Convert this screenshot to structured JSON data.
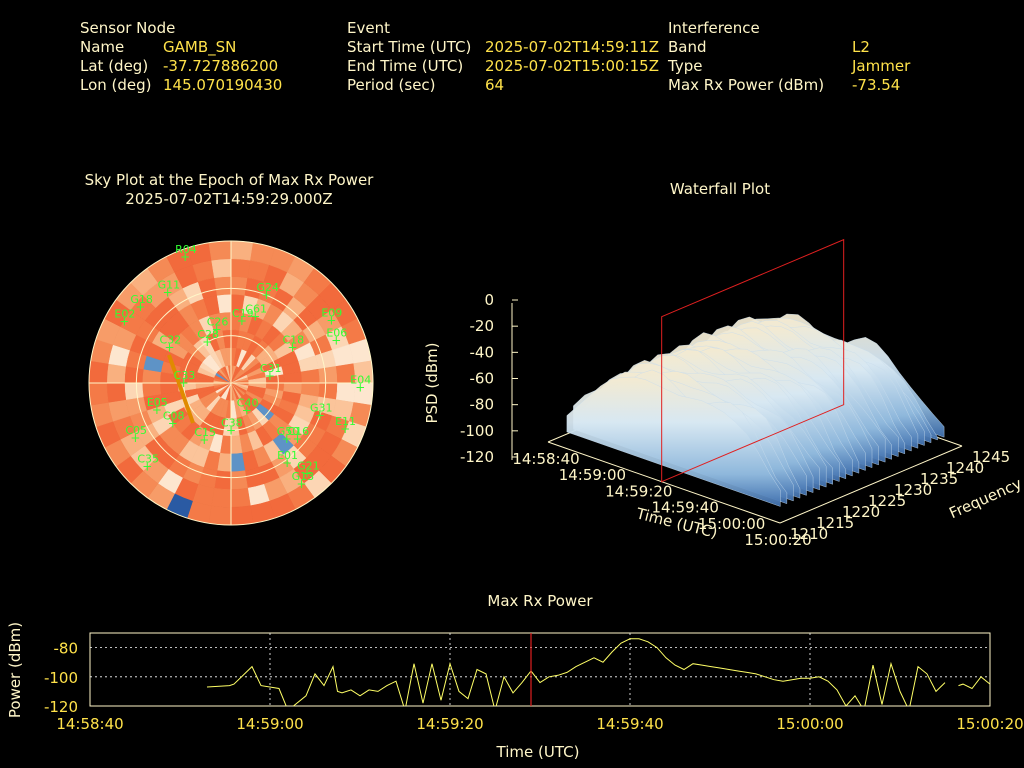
{
  "header": {
    "sensor": {
      "heading": "Sensor Node",
      "rows": [
        {
          "label": "Name",
          "value": "GAMB_SN"
        },
        {
          "label": "Lat (deg)",
          "value": "-37.727886200"
        },
        {
          "label": "Lon (deg)",
          "value": "145.070190430"
        }
      ]
    },
    "event": {
      "heading": "Event",
      "rows": [
        {
          "label": "Start Time (UTC)",
          "value": "2025-07-02T14:59:11Z"
        },
        {
          "label": "End Time (UTC)",
          "value": "2025-07-02T15:00:15Z"
        },
        {
          "label": "Period (sec)",
          "value": "64"
        }
      ]
    },
    "interference": {
      "heading": "Interference",
      "rows": [
        {
          "label": "Band",
          "value": "L2"
        },
        {
          "label": "Type",
          "value": "Jammer"
        },
        {
          "label": "Max Rx Power (dBm)",
          "value": "-73.54"
        }
      ]
    }
  },
  "colors": {
    "label": "#fff6c8",
    "value": "#ffe24a",
    "sat_label": "#33ff33",
    "marker": "#e02020",
    "line": "#ffff66"
  },
  "chart_data": [
    {
      "type": "heatmap",
      "projection": "polar",
      "title": "Sky Plot at the Epoch of Max Rx Power",
      "subtitle": "2025-07-02T14:59:29.000Z",
      "satellites": [
        {
          "id": "R04",
          "az": 340,
          "el": 5
        },
        {
          "id": "G24",
          "az": 22,
          "el": 30
        },
        {
          "id": "E09",
          "az": 58,
          "el": 15
        },
        {
          "id": "E06",
          "az": 68,
          "el": 18
        },
        {
          "id": "E04",
          "az": 92,
          "el": 8
        },
        {
          "id": "E11",
          "az": 112,
          "el": 12
        },
        {
          "id": "G31",
          "az": 110,
          "el": 30
        },
        {
          "id": "G50",
          "az": 135,
          "el": 40
        },
        {
          "id": "G21",
          "az": 140,
          "el": 15
        },
        {
          "id": "G13",
          "az": 145,
          "el": 12
        },
        {
          "id": "E01",
          "az": 145,
          "el": 28
        },
        {
          "id": "C16",
          "az": 130,
          "el": 35
        },
        {
          "id": "C18",
          "az": 60,
          "el": 45
        },
        {
          "id": "C61",
          "az": 20,
          "el": 45
        },
        {
          "id": "C19",
          "az": 10,
          "el": 50
        },
        {
          "id": "C26",
          "az": 345,
          "el": 55
        },
        {
          "id": "C28",
          "az": 330,
          "el": 60
        },
        {
          "id": "G11",
          "az": 325,
          "el": 20
        },
        {
          "id": "G18",
          "az": 310,
          "el": 15
        },
        {
          "id": "E02",
          "az": 300,
          "el": 12
        },
        {
          "id": "C05",
          "az": 240,
          "el": 20
        },
        {
          "id": "C35",
          "az": 225,
          "el": 15
        },
        {
          "id": "C08",
          "az": 235,
          "el": 45
        },
        {
          "id": "E05",
          "az": 250,
          "el": 40
        },
        {
          "id": "C15",
          "az": 205,
          "el": 50
        },
        {
          "id": "C38",
          "az": 180,
          "el": 60
        },
        {
          "id": "C40",
          "az": 150,
          "el": 70
        },
        {
          "id": "C31",
          "az": 80,
          "el": 65
        },
        {
          "id": "C33",
          "az": 270,
          "el": 60
        },
        {
          "id": "C32",
          "az": 300,
          "el": 45
        }
      ]
    },
    {
      "type": "area",
      "projection": "3d-waterfall",
      "title": "Waterfall Plot",
      "xlabel": "Time (UTC)",
      "ylabel": "Frequency (MHz)",
      "zlabel": "PSD (dBm)",
      "x_ticks": [
        "14:58:40",
        "14:59:00",
        "14:59:20",
        "14:59:40",
        "15:00:00",
        "15:00:20"
      ],
      "y_ticks": [
        "1210",
        "1215",
        "1220",
        "1225",
        "1230",
        "1235",
        "1240",
        "1245"
      ],
      "z_ticks": [
        "0",
        "-20",
        "-40",
        "-60",
        "-80",
        "-100",
        "-120"
      ],
      "zlim": [
        -120,
        0
      ],
      "psd_mean_profile": [
        -100,
        -90,
        -80,
        -70,
        -62,
        -58,
        -55,
        -54,
        -55,
        -56,
        -57,
        -56,
        -55,
        -56,
        -58,
        -62,
        -68,
        -78,
        -90,
        -100
      ],
      "marker_time": "14:59:29"
    },
    {
      "type": "line",
      "title": "Max Rx Power",
      "xlabel": "Time (UTC)",
      "ylabel": "Power (dBm)",
      "x_ticks": [
        "14:58:40",
        "14:59:00",
        "14:59:20",
        "14:59:40",
        "15:00:00",
        "15:00:20"
      ],
      "y_ticks": [
        -80,
        -100,
        -120
      ],
      "ylim": [
        -120,
        -70
      ],
      "xlim_seconds": [
        0,
        100
      ],
      "grid": true,
      "marker_time": "14:59:29",
      "series": [
        {
          "points": [
            [
              13,
              -107
            ],
            [
              15.5,
              -106
            ],
            [
              16,
              -105
            ],
            [
              18,
              -93
            ],
            [
              19,
              -106
            ],
            [
              21,
              -108
            ],
            [
              22,
              -123
            ],
            [
              24,
              -113
            ],
            [
              25,
              -98
            ],
            [
              26,
              -106
            ],
            [
              27,
              -93
            ],
            [
              27.5,
              -110
            ],
            [
              28,
              -111
            ],
            [
              29,
              -109
            ],
            [
              30,
              -113
            ],
            [
              31,
              -109
            ],
            [
              32,
              -110
            ],
            [
              33,
              -106
            ],
            [
              34,
              -103
            ],
            [
              35,
              -123
            ],
            [
              36,
              -91
            ],
            [
              37,
              -118
            ],
            [
              38,
              -91
            ],
            [
              39,
              -116
            ],
            [
              40,
              -91
            ],
            [
              41,
              -110
            ],
            [
              42,
              -115
            ],
            [
              43,
              -95
            ],
            [
              44,
              -98
            ],
            [
              45,
              -123
            ],
            [
              46,
              -100
            ],
            [
              47,
              -111
            ],
            [
              48,
              -104
            ],
            [
              49,
              -96
            ],
            [
              50,
              -104
            ],
            [
              51,
              -100
            ],
            [
              52,
              -99
            ],
            [
              53,
              -97
            ],
            [
              54,
              -93
            ],
            [
              55,
              -90
            ],
            [
              56,
              -87
            ],
            [
              57,
              -90
            ],
            [
              58,
              -83
            ],
            [
              59,
              -77
            ],
            [
              60,
              -74
            ],
            [
              61,
              -74
            ],
            [
              62,
              -76
            ],
            [
              63,
              -80
            ],
            [
              64,
              -87
            ],
            [
              65,
              -92
            ],
            [
              66,
              -95
            ],
            [
              67,
              -91
            ],
            [
              68,
              -92
            ],
            [
              69,
              -93
            ],
            [
              70,
              -94
            ],
            [
              71,
              -95
            ],
            [
              72,
              -96
            ],
            [
              73,
              -97
            ],
            [
              74,
              -98
            ],
            [
              75,
              -100
            ],
            [
              76,
              -102
            ],
            [
              77,
              -103
            ],
            [
              78,
              -102
            ],
            [
              79,
              -101
            ],
            [
              80,
              -101
            ],
            [
              81,
              -100
            ],
            [
              82,
              -103
            ],
            [
              83,
              -109
            ],
            [
              84,
              -120
            ],
            [
              85,
              -113
            ],
            [
              86,
              -123
            ],
            [
              87,
              -92
            ],
            [
              88,
              -119
            ],
            [
              89,
              -91
            ],
            [
              90,
              -110
            ],
            [
              91,
              -123
            ],
            [
              92,
              -93
            ],
            [
              93,
              -98
            ],
            [
              94,
              -110
            ],
            [
              95,
              -104
            ]
          ]
        },
        {
          "points": [
            [
              96.5,
              -106
            ],
            [
              97,
              -105
            ],
            [
              98,
              -108
            ],
            [
              99,
              -100
            ],
            [
              100,
              -105
            ],
            [
              101,
              -115
            ],
            [
              102,
              -102
            ],
            [
              103,
              -104
            ],
            [
              104,
              -106
            ],
            [
              105,
              -98
            ],
            [
              106,
              -92
            ],
            [
              107,
              -105
            ]
          ]
        },
        {
          "points": [
            [
              109,
              -107
            ],
            [
              110,
              -107
            ]
          ]
        }
      ]
    }
  ]
}
